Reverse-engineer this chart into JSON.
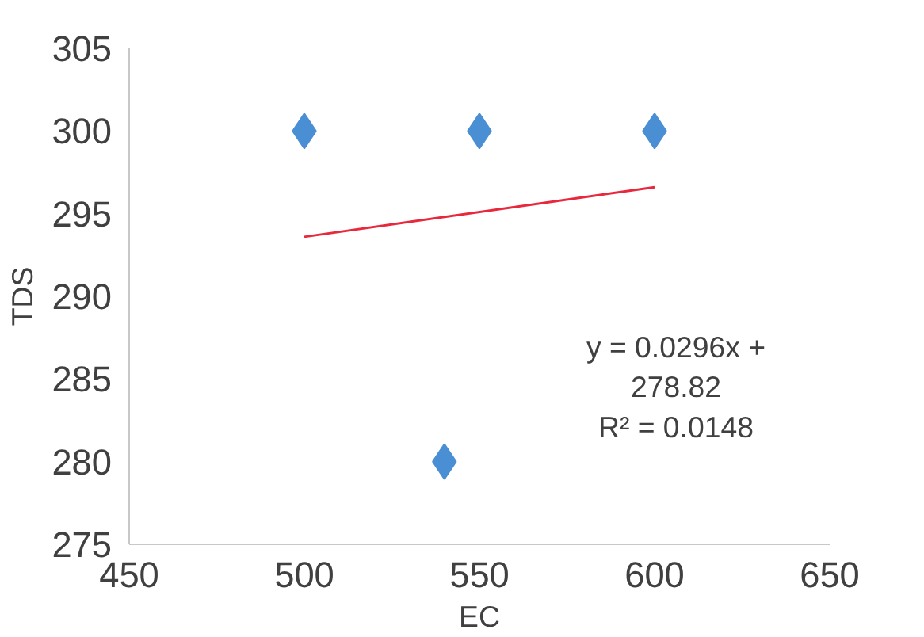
{
  "chart_data": {
    "type": "scatter",
    "xlabel": "EC",
    "ylabel": "TDS",
    "xlim": [
      450,
      650
    ],
    "xticks": [
      450,
      500,
      550,
      600,
      650
    ],
    "ylim": [
      275,
      305
    ],
    "yticks": [
      275,
      280,
      285,
      290,
      295,
      300,
      305
    ],
    "grid": false,
    "marker": "diamond",
    "series": [
      {
        "color": "#4a8fd4",
        "x": [
          500,
          550,
          600,
          540
        ],
        "values": [
          300,
          300,
          300,
          280
        ]
      },
      {
        "type": "line",
        "marker": "none",
        "color": "#e8283c",
        "x": [
          500,
          600
        ],
        "values": [
          293.6,
          296.6
        ]
      }
    ],
    "annotations": [
      "y = 0.0296x +\n278.82\nR² = 0.0148"
    ]
  }
}
